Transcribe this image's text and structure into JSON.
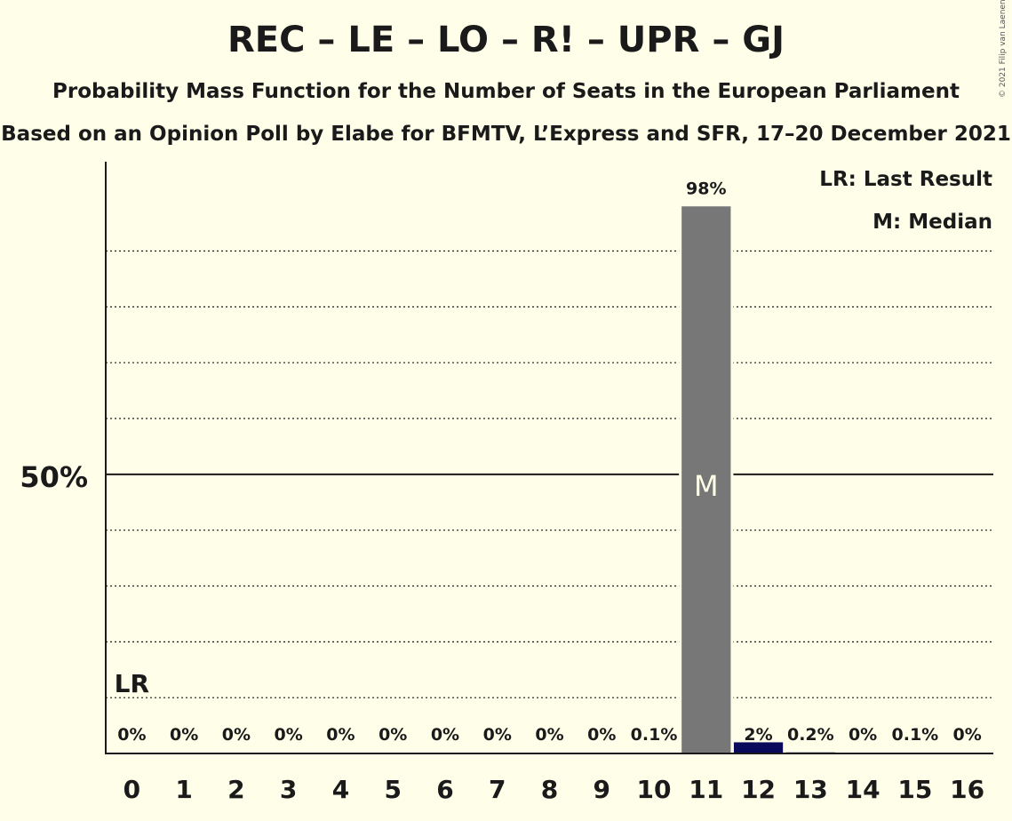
{
  "chart_data": {
    "type": "bar",
    "title": "REC – LE – LO – R! – UPR – GJ",
    "subtitle": "Probability Mass Function for the Number of Seats in the European Parliament",
    "subtitle2": "Based on an Opinion Poll by Elabe for BFMTV, L’Express and SFR, 17–20 December 2021",
    "copyright": "© 2021 Filip van Laenen",
    "categories": [
      "0",
      "1",
      "2",
      "3",
      "4",
      "5",
      "6",
      "7",
      "8",
      "9",
      "10",
      "11",
      "12",
      "13",
      "14",
      "15",
      "16"
    ],
    "values": [
      0,
      0,
      0,
      0,
      0,
      0,
      0,
      0,
      0,
      0,
      0.1,
      98,
      2,
      0.2,
      0,
      0.1,
      0
    ],
    "value_labels": [
      "0%",
      "0%",
      "0%",
      "0%",
      "0%",
      "0%",
      "0%",
      "0%",
      "0%",
      "0%",
      "0.1%",
      "98%",
      "2%",
      "0.2%",
      "0%",
      "0.1%",
      "0%"
    ],
    "ylim": [
      0,
      106
    ],
    "y_tick_label": "50%",
    "y_tick_value": 50,
    "gridlines": [
      10,
      20,
      30,
      40,
      60,
      70,
      80,
      90
    ],
    "last_result_seat": 0,
    "last_result_label": "LR",
    "median_seat": 11,
    "median_label": "M",
    "legend": [
      "LR: Last Result",
      "M: Median"
    ],
    "legend_position": "top-right",
    "colors": {
      "median_bar": "#777777",
      "other_bar": "#0a0a5c",
      "background": "#fefee9"
    }
  }
}
